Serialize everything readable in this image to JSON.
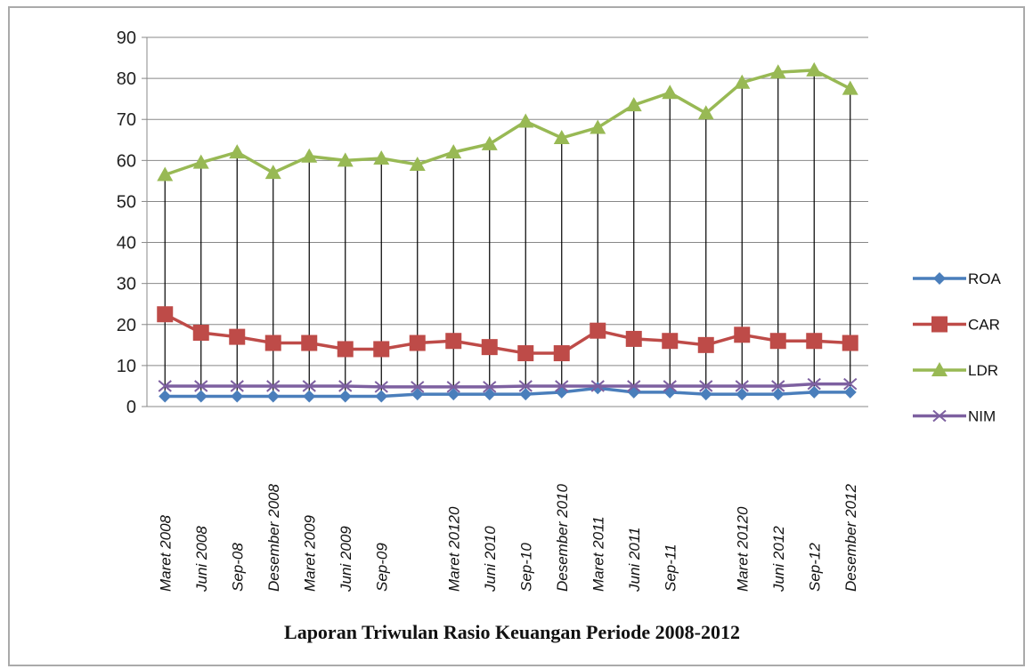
{
  "chart_data": {
    "type": "line",
    "title": "Laporan Triwulan Rasio Keuangan Periode 2008-2012",
    "categories": [
      "Maret 2008",
      "Juni 2008",
      "Sep-08",
      "Desember 2008",
      "Maret 2009",
      "Juni 2009",
      "Sep-09",
      null,
      "Maret 20120",
      "Juni 2010",
      "Sep-10",
      "Desember 2010",
      "Maret 2011",
      "Juni 2011",
      "Sep-11",
      null,
      "Maret 20120",
      "Juni 2012",
      "Sep-12",
      "Desember 2012"
    ],
    "series": [
      {
        "name": "ROA",
        "color": "#4a7ebb",
        "marker": "diamond",
        "values": [
          2.5,
          2.5,
          2.5,
          2.5,
          2.5,
          2.5,
          2.5,
          3,
          3,
          3,
          3,
          3.5,
          4.5,
          3.5,
          3.5,
          3,
          3,
          3,
          3.5,
          3.5
        ]
      },
      {
        "name": "CAR",
        "color": "#be4b48",
        "marker": "square",
        "values": [
          22.5,
          18,
          17,
          15.5,
          15.5,
          14,
          14,
          15.5,
          16,
          14.5,
          13,
          13,
          18.5,
          16.5,
          16,
          15,
          17.5,
          16,
          16,
          15.5
        ]
      },
      {
        "name": "LDR",
        "color": "#98b954",
        "marker": "triangle",
        "values": [
          56.5,
          59.5,
          62,
          57,
          61,
          60,
          60.5,
          59,
          62,
          64,
          69.5,
          65.5,
          68,
          73.5,
          76.5,
          71.5,
          79,
          81.5,
          82,
          77.5
        ]
      },
      {
        "name": "NIM",
        "color": "#7d60a0",
        "marker": "x",
        "values": [
          5,
          5,
          5,
          5,
          5,
          5,
          4.8,
          4.8,
          4.8,
          4.8,
          5,
          5,
          5,
          5,
          5,
          5,
          5,
          5,
          5.5,
          5.5
        ]
      }
    ],
    "ylim": [
      0,
      90
    ],
    "yticks": [
      0,
      10,
      20,
      30,
      40,
      50,
      60,
      70,
      80,
      90
    ],
    "grid": true,
    "legend": "right"
  }
}
